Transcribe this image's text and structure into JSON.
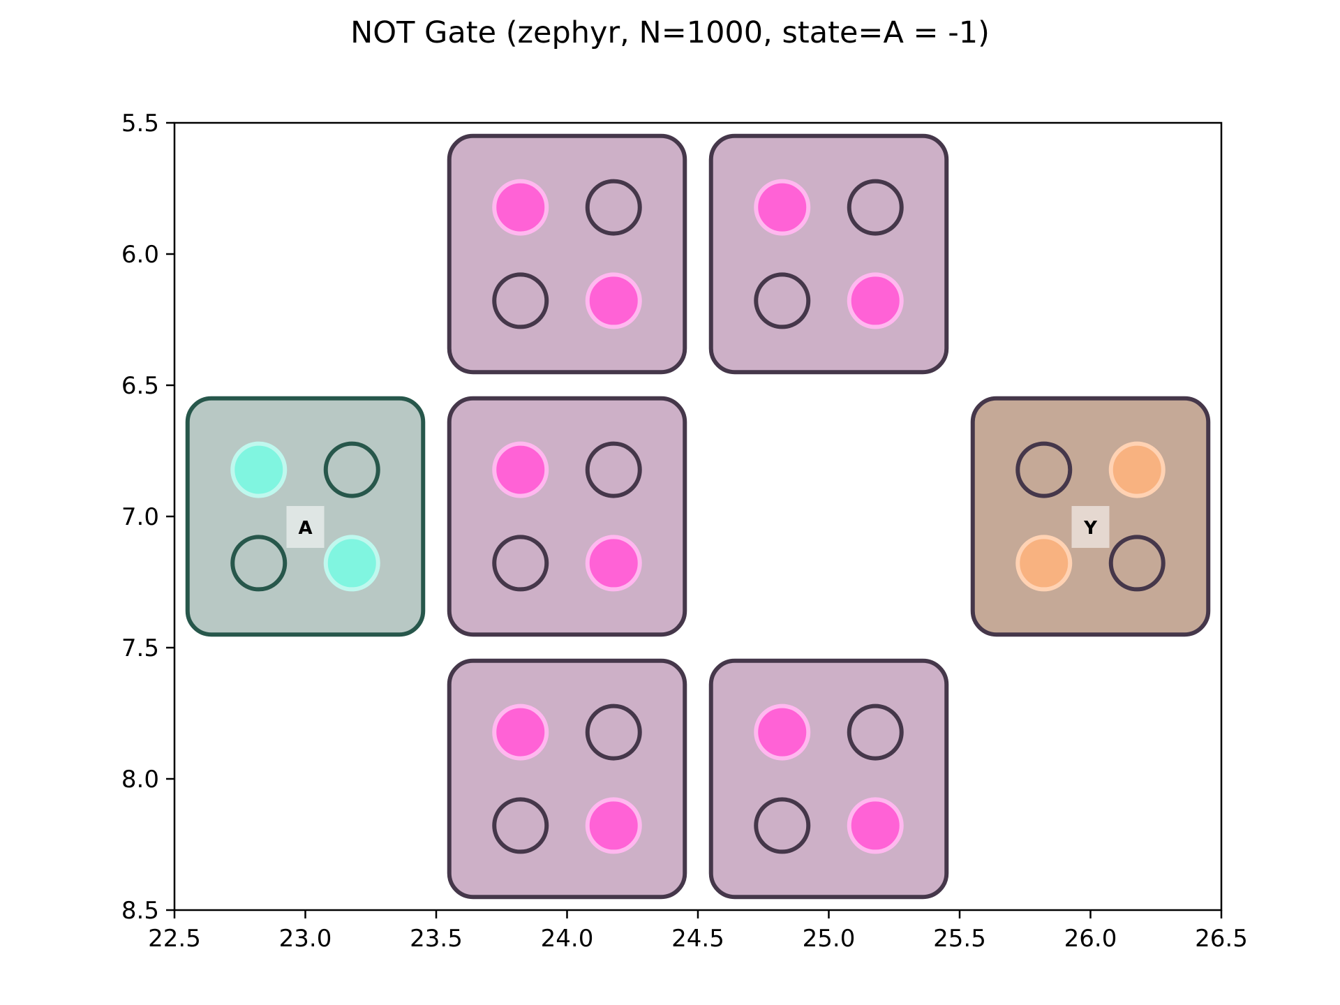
{
  "title": "NOT Gate (zephyr, N=1000, state=A = -1)",
  "colors": {
    "tile_gray_fill": "#cdb0c7",
    "tile_gray_edge": "#45374a",
    "tile_input_fill": "#b8c8c4",
    "tile_input_edge": "#27574b",
    "tile_output_fill": "#c5a997",
    "tile_output_edge": "#45374a",
    "dot_gray_on": "#ff62d6",
    "dot_gray_ring": "#ffb8ef",
    "dot_input_on": "#80f5e0",
    "dot_input_ring": "#bff8ee",
    "dot_output_on": "#f8b280",
    "dot_output_ring": "#ffd2b3",
    "empty_edge_gray": "#45374a",
    "empty_edge_input": "#27574b"
  },
  "chart_data": {
    "type": "diagram",
    "title": "NOT Gate (zephyr, N=1000, state=A = -1)",
    "xlim": [
      22.5,
      26.5
    ],
    "ylim": [
      8.5,
      5.5
    ],
    "y_inverted": true,
    "xticks": [
      "22.5",
      "23.0",
      "23.5",
      "24.0",
      "24.5",
      "25.0",
      "25.5",
      "26.0",
      "26.5"
    ],
    "yticks": [
      "5.5",
      "6.0",
      "6.5",
      "7.0",
      "7.5",
      "8.0",
      "8.5"
    ],
    "xtick_values": [
      22.5,
      23.0,
      23.5,
      24.0,
      24.5,
      25.0,
      25.5,
      26.0,
      26.5
    ],
    "ytick_values": [
      5.5,
      6.0,
      6.5,
      7.0,
      7.5,
      8.0,
      8.5
    ],
    "grid": false,
    "tiles": [
      {
        "id": "tile-a",
        "cx": 23.0,
        "cy": 7.0,
        "kind": "input",
        "label": "A",
        "on": [
          [
            0,
            0
          ],
          [
            1,
            1
          ]
        ]
      },
      {
        "id": "tile-top-left",
        "cx": 24.0,
        "cy": 6.0,
        "kind": "gray",
        "label": "",
        "on": [
          [
            0,
            0
          ],
          [
            1,
            1
          ]
        ]
      },
      {
        "id": "tile-top-right",
        "cx": 25.0,
        "cy": 6.0,
        "kind": "gray",
        "label": "",
        "on": [
          [
            0,
            0
          ],
          [
            1,
            1
          ]
        ]
      },
      {
        "id": "tile-middle",
        "cx": 24.0,
        "cy": 7.0,
        "kind": "gray",
        "label": "",
        "on": [
          [
            0,
            0
          ],
          [
            1,
            1
          ]
        ]
      },
      {
        "id": "tile-bottom-left",
        "cx": 24.0,
        "cy": 8.0,
        "kind": "gray",
        "label": "",
        "on": [
          [
            0,
            0
          ],
          [
            1,
            1
          ]
        ]
      },
      {
        "id": "tile-bottom-right",
        "cx": 25.0,
        "cy": 8.0,
        "kind": "gray",
        "label": "",
        "on": [
          [
            0,
            0
          ],
          [
            1,
            1
          ]
        ]
      },
      {
        "id": "tile-y",
        "cx": 26.0,
        "cy": 7.0,
        "kind": "output",
        "label": "Y",
        "on": [
          [
            1,
            0
          ],
          [
            0,
            1
          ]
        ]
      }
    ],
    "tile_half_extent": 0.45,
    "dot_offset": 0.178,
    "dot_radius": 0.1
  }
}
